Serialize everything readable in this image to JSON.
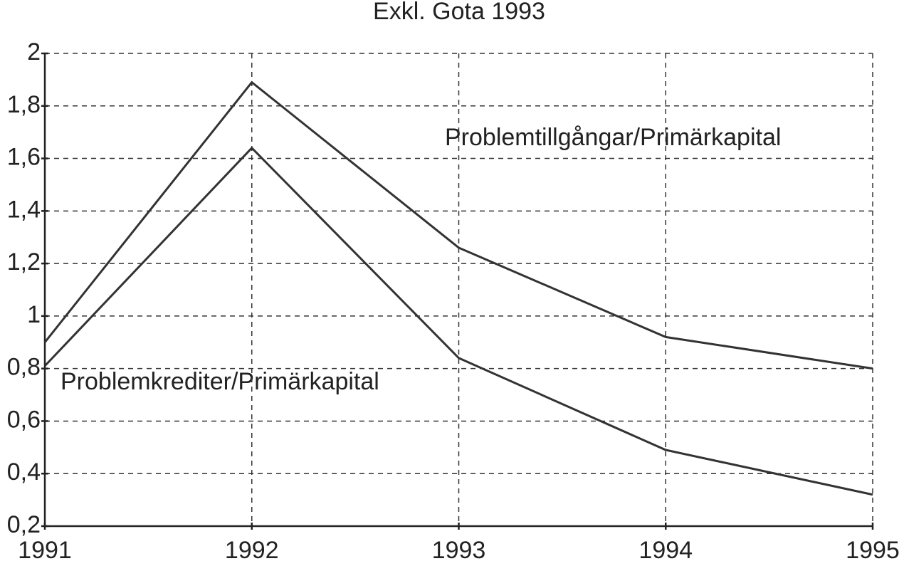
{
  "chart_data": {
    "type": "line",
    "title": "Exkl. Gota 1993",
    "x": [
      1991,
      1992,
      1993,
      1994,
      1995
    ],
    "series": [
      {
        "name": "Problemtillgångar/Primärkapital",
        "color": "#333333",
        "values": [
          0.9,
          1.89,
          1.26,
          0.92,
          0.8
        ]
      },
      {
        "name": "Problemkrediter/Primärkapital",
        "color": "#333333",
        "values": [
          0.81,
          1.64,
          0.84,
          0.49,
          0.32
        ]
      }
    ],
    "xlim": [
      1991,
      1995
    ],
    "xticks": [
      1991,
      1992,
      1993,
      1994,
      1995
    ],
    "ylim": [
      0.2,
      2
    ],
    "yticks": [
      {
        "value": 0.2,
        "label": "0,2"
      },
      {
        "value": 0.4,
        "label": "0,4"
      },
      {
        "value": 0.6,
        "label": "0,6"
      },
      {
        "value": 0.8,
        "label": "0,8"
      },
      1,
      {
        "value": 1.2,
        "label": "1,2"
      },
      {
        "value": 1.4,
        "label": "1,4"
      },
      {
        "value": 1.6,
        "label": "1,6"
      },
      {
        "value": 1.8,
        "label": "1,8"
      },
      2
    ],
    "grid": true
  }
}
